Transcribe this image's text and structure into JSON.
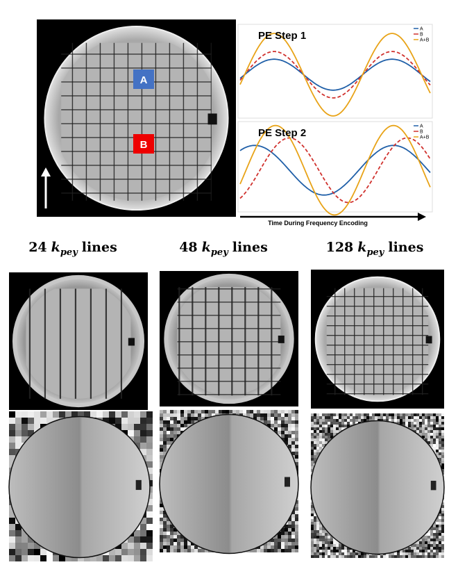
{
  "figure_top": {
    "region_labels": [
      "A",
      "B"
    ],
    "plots": [
      {
        "title": "PE Step 1",
        "legend": [
          "A",
          "B",
          "A+B"
        ]
      },
      {
        "title": "PE Step 2",
        "legend": [
          "A",
          "B",
          "A+B"
        ]
      }
    ],
    "time_axis_label": "Time During Frequency Encoding"
  },
  "columns": [
    {
      "count": "24",
      "symbol": "k",
      "subscript": "pey",
      "suffix": "lines"
    },
    {
      "count": "48",
      "symbol": "k",
      "subscript": "pey",
      "suffix": "lines"
    },
    {
      "count": "128",
      "symbol": "k",
      "subscript": "pey",
      "suffix": "lines"
    }
  ]
}
